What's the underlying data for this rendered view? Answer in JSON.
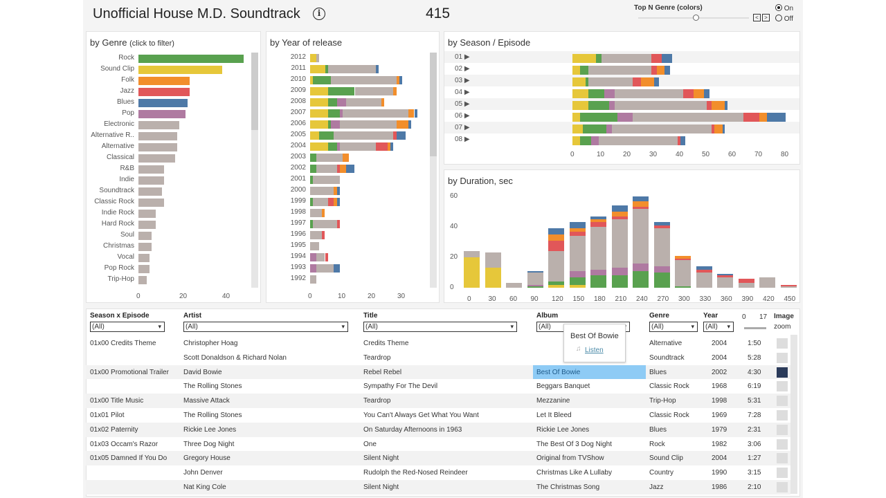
{
  "header": {
    "title": "Unofficial House M.D. Soundtrack",
    "count": "415",
    "info_icon": "info-icon",
    "topn_label": "Top N Genre (colors)",
    "radio_on": "On",
    "radio_off": "Off",
    "radio_selected": "On",
    "slider_level": 0.52
  },
  "colors": {
    "Sound Clip": "#e6c73a",
    "Rock": "#59a14f",
    "Pop": "#af7aa1",
    "Other": "#bab0ac",
    "Jazz": "#e15759",
    "Folk": "#f28e2b",
    "Blues": "#4e79a7",
    "highlight": "#8ecbf5"
  },
  "chart_data": [
    {
      "type": "bar",
      "title": "by Genre",
      "title_hint": "(click to filter)",
      "orientation": "horizontal",
      "xticks": [
        "0",
        "20",
        "40"
      ],
      "xlim": [
        0,
        50
      ],
      "categories": [
        "Rock",
        "Sound Clip",
        "Folk",
        "Jazz",
        "Blues",
        "Pop",
        "Electronic",
        "Alternative R..",
        "Alternative",
        "Classical",
        "R&B",
        "Indie",
        "Soundtrack",
        "Classic Rock",
        "Indie Rock",
        "Hard Rock",
        "Soul",
        "Christmas",
        "Vocal",
        "Pop Rock",
        "Trip-Hop"
      ],
      "values": [
        49,
        39,
        24,
        24,
        23,
        22,
        19,
        18,
        18,
        17,
        12,
        12,
        11,
        12,
        8,
        8,
        6,
        6,
        5,
        5,
        4
      ],
      "color_keys": [
        "Rock",
        "Sound Clip",
        "Folk",
        "Jazz",
        "Blues",
        "Pop",
        "Other",
        "Other",
        "Other",
        "Other",
        "Other",
        "Other",
        "Other",
        "Other",
        "Other",
        "Other",
        "Other",
        "Other",
        "Other",
        "Other",
        "Other"
      ]
    },
    {
      "type": "bar",
      "stacked": true,
      "title": "by Year of release",
      "orientation": "horizontal",
      "xticks": [
        "0",
        "10",
        "20",
        "30"
      ],
      "xlim": [
        0,
        34
      ],
      "stack_order": [
        "Sound Clip",
        "Rock",
        "Pop",
        "Other",
        "Jazz",
        "Folk",
        "Blues"
      ],
      "categories": [
        "2012",
        "2011",
        "2010",
        "2009",
        "2008",
        "2007",
        "2006",
        "2005",
        "2004",
        "2003",
        "2002",
        "2001",
        "2000",
        "1999",
        "1998",
        "1997",
        "1996",
        "1995",
        "1994",
        "1993",
        "1992"
      ],
      "values": [
        [
          2,
          0,
          0,
          1,
          0,
          0,
          0
        ],
        [
          5,
          1,
          0,
          16,
          0,
          0,
          1
        ],
        [
          1,
          6,
          0,
          22,
          0,
          1,
          1
        ],
        [
          6,
          9,
          0,
          13,
          0,
          1,
          0
        ],
        [
          6,
          3,
          3,
          12,
          0,
          1,
          0
        ],
        [
          6,
          4,
          1,
          22,
          0,
          2,
          1
        ],
        [
          6,
          1,
          3,
          19,
          0,
          4,
          1
        ],
        [
          3,
          5,
          0,
          20,
          1,
          0,
          3
        ],
        [
          6,
          3,
          1,
          12,
          4,
          1,
          1
        ],
        [
          0,
          2,
          0,
          9,
          0,
          2,
          0
        ],
        [
          0,
          2,
          0,
          7,
          1,
          2,
          3
        ],
        [
          0,
          1,
          0,
          9,
          0,
          0,
          0
        ],
        [
          0,
          0,
          0,
          8,
          0,
          1,
          1
        ],
        [
          0,
          1,
          0,
          5,
          2,
          1,
          1
        ],
        [
          0,
          0,
          0,
          4,
          0,
          1,
          0
        ],
        [
          0,
          1,
          0,
          8,
          1,
          0,
          0
        ],
        [
          0,
          0,
          0,
          4,
          1,
          0,
          0
        ],
        [
          0,
          0,
          0,
          3,
          0,
          0,
          0
        ],
        [
          0,
          0,
          2,
          3,
          1,
          0,
          0
        ],
        [
          0,
          0,
          2,
          6,
          0,
          0,
          2
        ],
        [
          0,
          0,
          0,
          2,
          0,
          0,
          0
        ]
      ]
    },
    {
      "type": "bar",
      "stacked": true,
      "title": "by Season / Episode",
      "orientation": "horizontal",
      "xticks": [
        "0",
        "10",
        "20",
        "30",
        "40",
        "50",
        "60",
        "70",
        "80"
      ],
      "xlim": [
        0,
        80
      ],
      "stack_order": [
        "Sound Clip",
        "Rock",
        "Pop",
        "Other",
        "Jazz",
        "Folk",
        "Blues"
      ],
      "categories": [
        "01",
        "02",
        "03",
        "04",
        "05",
        "06",
        "07",
        "08"
      ],
      "values": [
        [
          9,
          2,
          0,
          19,
          4,
          0,
          4
        ],
        [
          3,
          3,
          0,
          24,
          2,
          3,
          2
        ],
        [
          5,
          1,
          0,
          17,
          3,
          5,
          2
        ],
        [
          6,
          6,
          4,
          26,
          4,
          4,
          2
        ],
        [
          6,
          8,
          2,
          35,
          2,
          5,
          1
        ],
        [
          3,
          14,
          6,
          42,
          6,
          3,
          7
        ],
        [
          4,
          9,
          2,
          38,
          1,
          3,
          1
        ],
        [
          3,
          4,
          3,
          30,
          1,
          0,
          2
        ]
      ]
    },
    {
      "type": "bar",
      "stacked": true,
      "title": "by Duration, sec",
      "orientation": "vertical",
      "yticks": [
        "0",
        "20",
        "40",
        "60"
      ],
      "ylim": [
        0,
        62
      ],
      "stack_order": [
        "Sound Clip",
        "Rock",
        "Pop",
        "Other",
        "Jazz",
        "Folk",
        "Blues"
      ],
      "categories": [
        "0",
        "30",
        "60",
        "90",
        "120",
        "150",
        "180",
        "210",
        "240",
        "270",
        "300",
        "330",
        "360",
        "390",
        "420",
        "450"
      ],
      "values": [
        [
          20,
          0,
          0,
          4,
          0,
          0,
          0
        ],
        [
          13,
          0,
          0,
          10,
          0,
          0,
          0
        ],
        [
          0,
          0,
          0,
          3,
          0,
          0,
          0
        ],
        [
          0,
          1,
          1,
          8,
          0,
          0,
          1
        ],
        [
          2,
          2,
          0,
          20,
          7,
          4,
          4
        ],
        [
          2,
          5,
          4,
          23,
          3,
          2,
          4
        ],
        [
          0,
          8,
          4,
          28,
          3,
          2,
          2
        ],
        [
          0,
          8,
          5,
          32,
          2,
          3,
          4
        ],
        [
          0,
          11,
          5,
          36,
          1,
          4,
          3
        ],
        [
          0,
          10,
          4,
          25,
          2,
          0,
          2
        ],
        [
          0,
          1,
          0,
          17,
          1,
          2,
          0
        ],
        [
          0,
          0,
          0,
          10,
          2,
          0,
          2
        ],
        [
          0,
          0,
          0,
          7,
          1,
          0,
          1
        ],
        [
          0,
          0,
          0,
          3,
          3,
          0,
          0
        ],
        [
          0,
          0,
          0,
          7,
          0,
          0,
          0
        ],
        [
          0,
          0,
          0,
          1,
          1,
          0,
          0
        ]
      ]
    }
  ],
  "table": {
    "filters": [
      {
        "label": "Season x Episode",
        "value": "(All)"
      },
      {
        "label": "Artist",
        "value": "(All)"
      },
      {
        "label": "Title",
        "value": "(All)"
      },
      {
        "label": "Album",
        "value": "(All)"
      },
      {
        "label": "Genre",
        "value": "(All)"
      },
      {
        "label": "Year",
        "value": "(All)"
      }
    ],
    "range_min": "0",
    "range_max": "17",
    "image_label": "Image",
    "zoom_label": "zoom",
    "tooltip": {
      "album": "Best Of Bowie",
      "listen": "Listen"
    },
    "rows": [
      {
        "episode": "01x00 Credits Theme",
        "artist": "Christopher Hoag",
        "title": "Credits Theme",
        "album": "",
        "genre": "Alternative",
        "year": "2004",
        "duration": "1:50"
      },
      {
        "episode": "",
        "artist": "Scott Donaldson & Richard Nolan",
        "title": "Teardrop",
        "album": "",
        "genre": "Soundtrack",
        "year": "2004",
        "duration": "5:28"
      },
      {
        "episode": "01x00 Promotional Trailer",
        "artist": "David Bowie",
        "title": "Rebel Rebel",
        "album": "Best Of Bowie",
        "genre": "Blues",
        "year": "2002",
        "duration": "4:30",
        "selected": true
      },
      {
        "episode": "",
        "artist": "The Rolling Stones",
        "title": "Sympathy For The Devil",
        "album": "Beggars Banquet",
        "genre": "Classic Rock",
        "year": "1968",
        "duration": "6:19"
      },
      {
        "episode": "01x00 Title Music",
        "artist": "Massive Attack",
        "title": "Teardrop",
        "album": "Mezzanine",
        "genre": "Trip-Hop",
        "year": "1998",
        "duration": "5:31"
      },
      {
        "episode": "01x01 Pilot",
        "artist": "The Rolling Stones",
        "title": "You Can't Always Get What You Want",
        "album": "Let It Bleed",
        "genre": "Classic Rock",
        "year": "1969",
        "duration": "7:28"
      },
      {
        "episode": "01x02 Paternity",
        "artist": "Rickie Lee Jones",
        "title": "On Saturday Afternoons in 1963",
        "album": "Rickie Lee Jones",
        "genre": "Blues",
        "year": "1979",
        "duration": "2:31"
      },
      {
        "episode": "01x03 Occam's Razor",
        "artist": "Three Dog Night",
        "title": "One",
        "album": "The Best Of 3 Dog Night",
        "genre": "Rock",
        "year": "1982",
        "duration": "3:06"
      },
      {
        "episode": "01x05 Damned If You Do",
        "artist": "Gregory House",
        "title": "Silent Night",
        "album": "Original from TVShow",
        "genre": "Sound Clip",
        "year": "2004",
        "duration": "1:27"
      },
      {
        "episode": "",
        "artist": "John Denver",
        "title": "Rudolph the Red-Nosed Reindeer",
        "album": "Christmas Like A Lullaby",
        "genre": "Country",
        "year": "1990",
        "duration": "3:15"
      },
      {
        "episode": "",
        "artist": "Nat King Cole",
        "title": "Silent Night",
        "album": "The Christmas Song",
        "genre": "Jazz",
        "year": "1986",
        "duration": "2:10"
      }
    ]
  }
}
